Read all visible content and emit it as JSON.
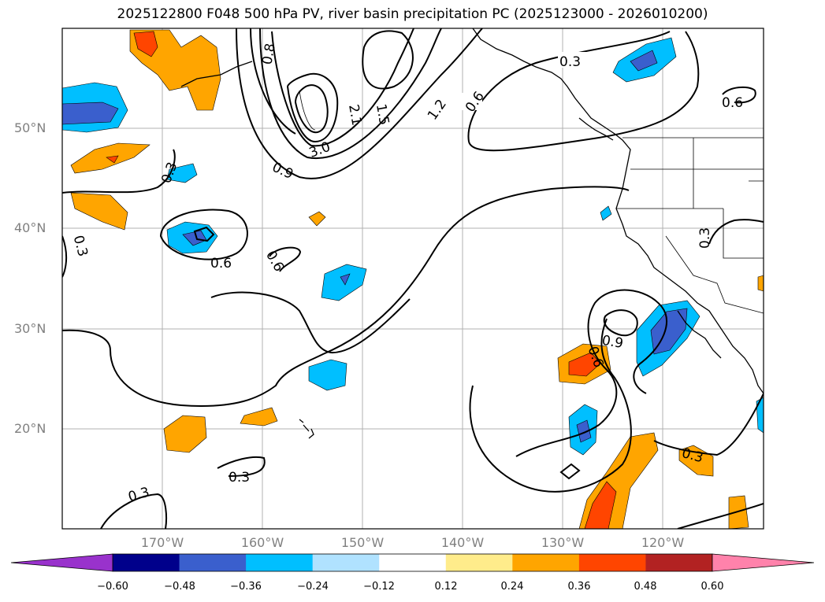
{
  "title": "2025122800 F048 500 hPa PV, river basin precipitation PC (2025123000 - 2026010200)",
  "latitude_labels": [
    "50°N",
    "40°N",
    "30°N",
    "20°N"
  ],
  "longitude_labels": [
    "170°W",
    "160°W",
    "150°W",
    "140°W",
    "130°W",
    "120°W"
  ],
  "contour_labels": [
    "0.3",
    "0.6",
    "0.9",
    "1.2",
    "1.5",
    "2.1",
    "3.0",
    "0.6",
    "0.3",
    "0.6",
    "0.3",
    "0.9",
    "0.6",
    "0.3",
    "0.3",
    "0.3",
    "0.6",
    "0.3",
    "0.8"
  ],
  "colorbar": {
    "ticks": [
      "−0.60",
      "−0.48",
      "−0.36",
      "−0.24",
      "−0.12",
      "0.12",
      "0.24",
      "0.36",
      "0.48",
      "0.60"
    ],
    "colors": [
      "#9932CC",
      "#00008B",
      "#3A5FCD",
      "#00BFFF",
      "#B0E2FF",
      "#FFFFFF",
      "#FFEC8B",
      "#FFA500",
      "#FF4500",
      "#B22222",
      "#FF82AB"
    ]
  }
}
